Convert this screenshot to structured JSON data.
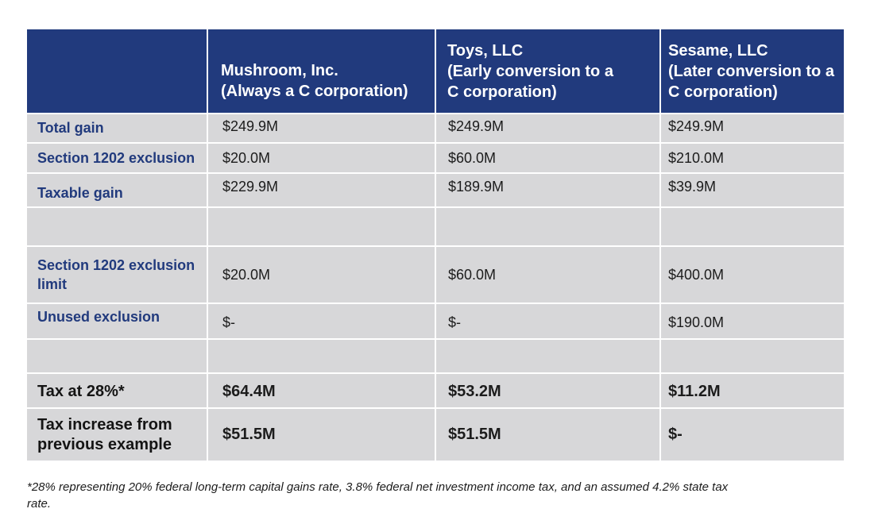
{
  "table": {
    "headers": [
      "",
      "Mushroom,  Inc.\n(Always a C corporation)",
      "Toys, LLC\n(Early conversion to a C corporation)",
      "Sesame, LLC\n(Later conversion to a C corporation)"
    ],
    "header_lines": [
      [],
      [
        "Mushroom,  Inc.",
        "(Always a C corporation)"
      ],
      [
        "Toys, LLC",
        "(Early conversion to a",
        "C corporation)"
      ],
      [
        "Sesame, LLC",
        "(Later conversion to a",
        "C corporation)"
      ]
    ],
    "rows": [
      {
        "label": "Total gain",
        "values": [
          "$249.9M",
          "$249.9M",
          "$249.9M"
        ]
      },
      {
        "label": "Section 1202 exclusion",
        "values": [
          "$20.0M",
          "$60.0M",
          "$210.0M"
        ]
      },
      {
        "label": "Taxable gain",
        "values": [
          "$229.9M",
          "$189.9M",
          "$39.9M"
        ]
      },
      {
        "label": "",
        "values": [
          "",
          "",
          ""
        ]
      },
      {
        "label": "Section 1202 exclusion limit",
        "values": [
          "$20.0M",
          "$60.0M",
          "$400.0M"
        ]
      },
      {
        "label": "Unused exclusion",
        "values": [
          "$-",
          "$-",
          "$190.0M"
        ]
      },
      {
        "label": "",
        "values": [
          "",
          "",
          ""
        ]
      },
      {
        "label": "Tax at 28%*",
        "values": [
          "$64.4M",
          "$53.2M",
          "$11.2M"
        ]
      },
      {
        "label": "Tax increase from previous example",
        "values": [
          "$51.5M",
          "$51.5M",
          "$-"
        ]
      }
    ]
  },
  "footnote": "*28% representing 20% federal long-term capital gains rate, 3.8% federal net investment income tax, and an assumed 4.2% state tax rate.",
  "colors": {
    "header_bg": "#213a7d",
    "header_text": "#ffffff",
    "cell_bg": "#d7d7d9",
    "label_text": "#213a7d",
    "body_text": "#1c1c1c"
  }
}
